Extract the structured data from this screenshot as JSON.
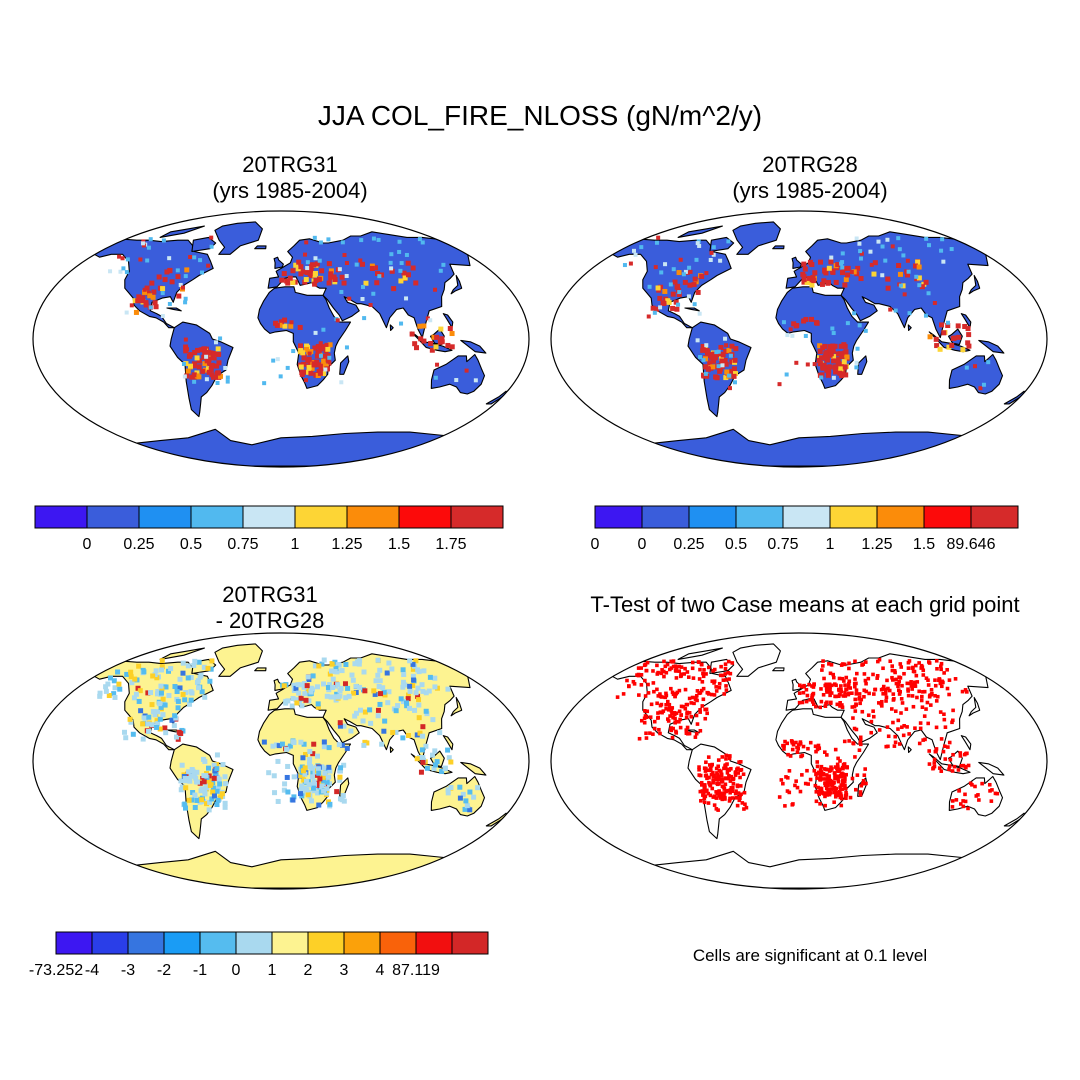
{
  "figure": {
    "title": "JJA COL_FIRE_NLOSS (gN/m^2/y)",
    "panels": [
      {
        "id": "case1",
        "title_line1": "20TRG31",
        "title_line2": "(yrs 1985-2004)",
        "colorbar": {
          "colors": [
            "#3d17f2",
            "#3a5ddb",
            "#1f90f2",
            "#51b9ef",
            "#c9e6f4",
            "#fdd535",
            "#fb8c0a",
            "#fc0a0a",
            "#d62a2a"
          ],
          "labels": [
            "0",
            "0.25",
            "0.5",
            "0.75",
            "1",
            "1.25",
            "1.5",
            "1.75"
          ]
        },
        "fill": "background-blue",
        "hotspot_color": "red"
      },
      {
        "id": "case2",
        "title_line1": "20TRG28",
        "title_line2": "(yrs 1985-2004)",
        "colorbar": {
          "colors": [
            "#3d17f2",
            "#3a5ddb",
            "#1f90f2",
            "#51b9ef",
            "#c9e6f4",
            "#fdd535",
            "#fb8c0a",
            "#fc0a0a",
            "#d62a2a"
          ],
          "labels": [
            "0",
            "0",
            "0.25",
            "0.5",
            "0.75",
            "1",
            "1.25",
            "1.5",
            "89.646"
          ]
        },
        "fill": "background-blue",
        "hotspot_color": "red"
      },
      {
        "id": "diff",
        "title_line1": "20TRG31",
        "title_line2": "- 20TRG28",
        "colorbar": {
          "colors": [
            "#3d17f2",
            "#2a3ee8",
            "#3675e0",
            "#1a9cf5",
            "#55bcef",
            "#a9d9ef",
            "#fdf391",
            "#fdd027",
            "#fba10a",
            "#f9620a",
            "#f20f0f",
            "#d32727"
          ],
          "labels": [
            "-73.252",
            "-4",
            "-3",
            "-2",
            "-1",
            "0",
            "1",
            "2",
            "3",
            "4",
            "87.119"
          ]
        },
        "fill": "background-yellow"
      },
      {
        "id": "ttest",
        "title_line1": "T-Test of two Case means at each grid point",
        "note": "Cells are significant at 0.1 level",
        "fill": "none",
        "dot_color": "#ff0000"
      }
    ]
  }
}
